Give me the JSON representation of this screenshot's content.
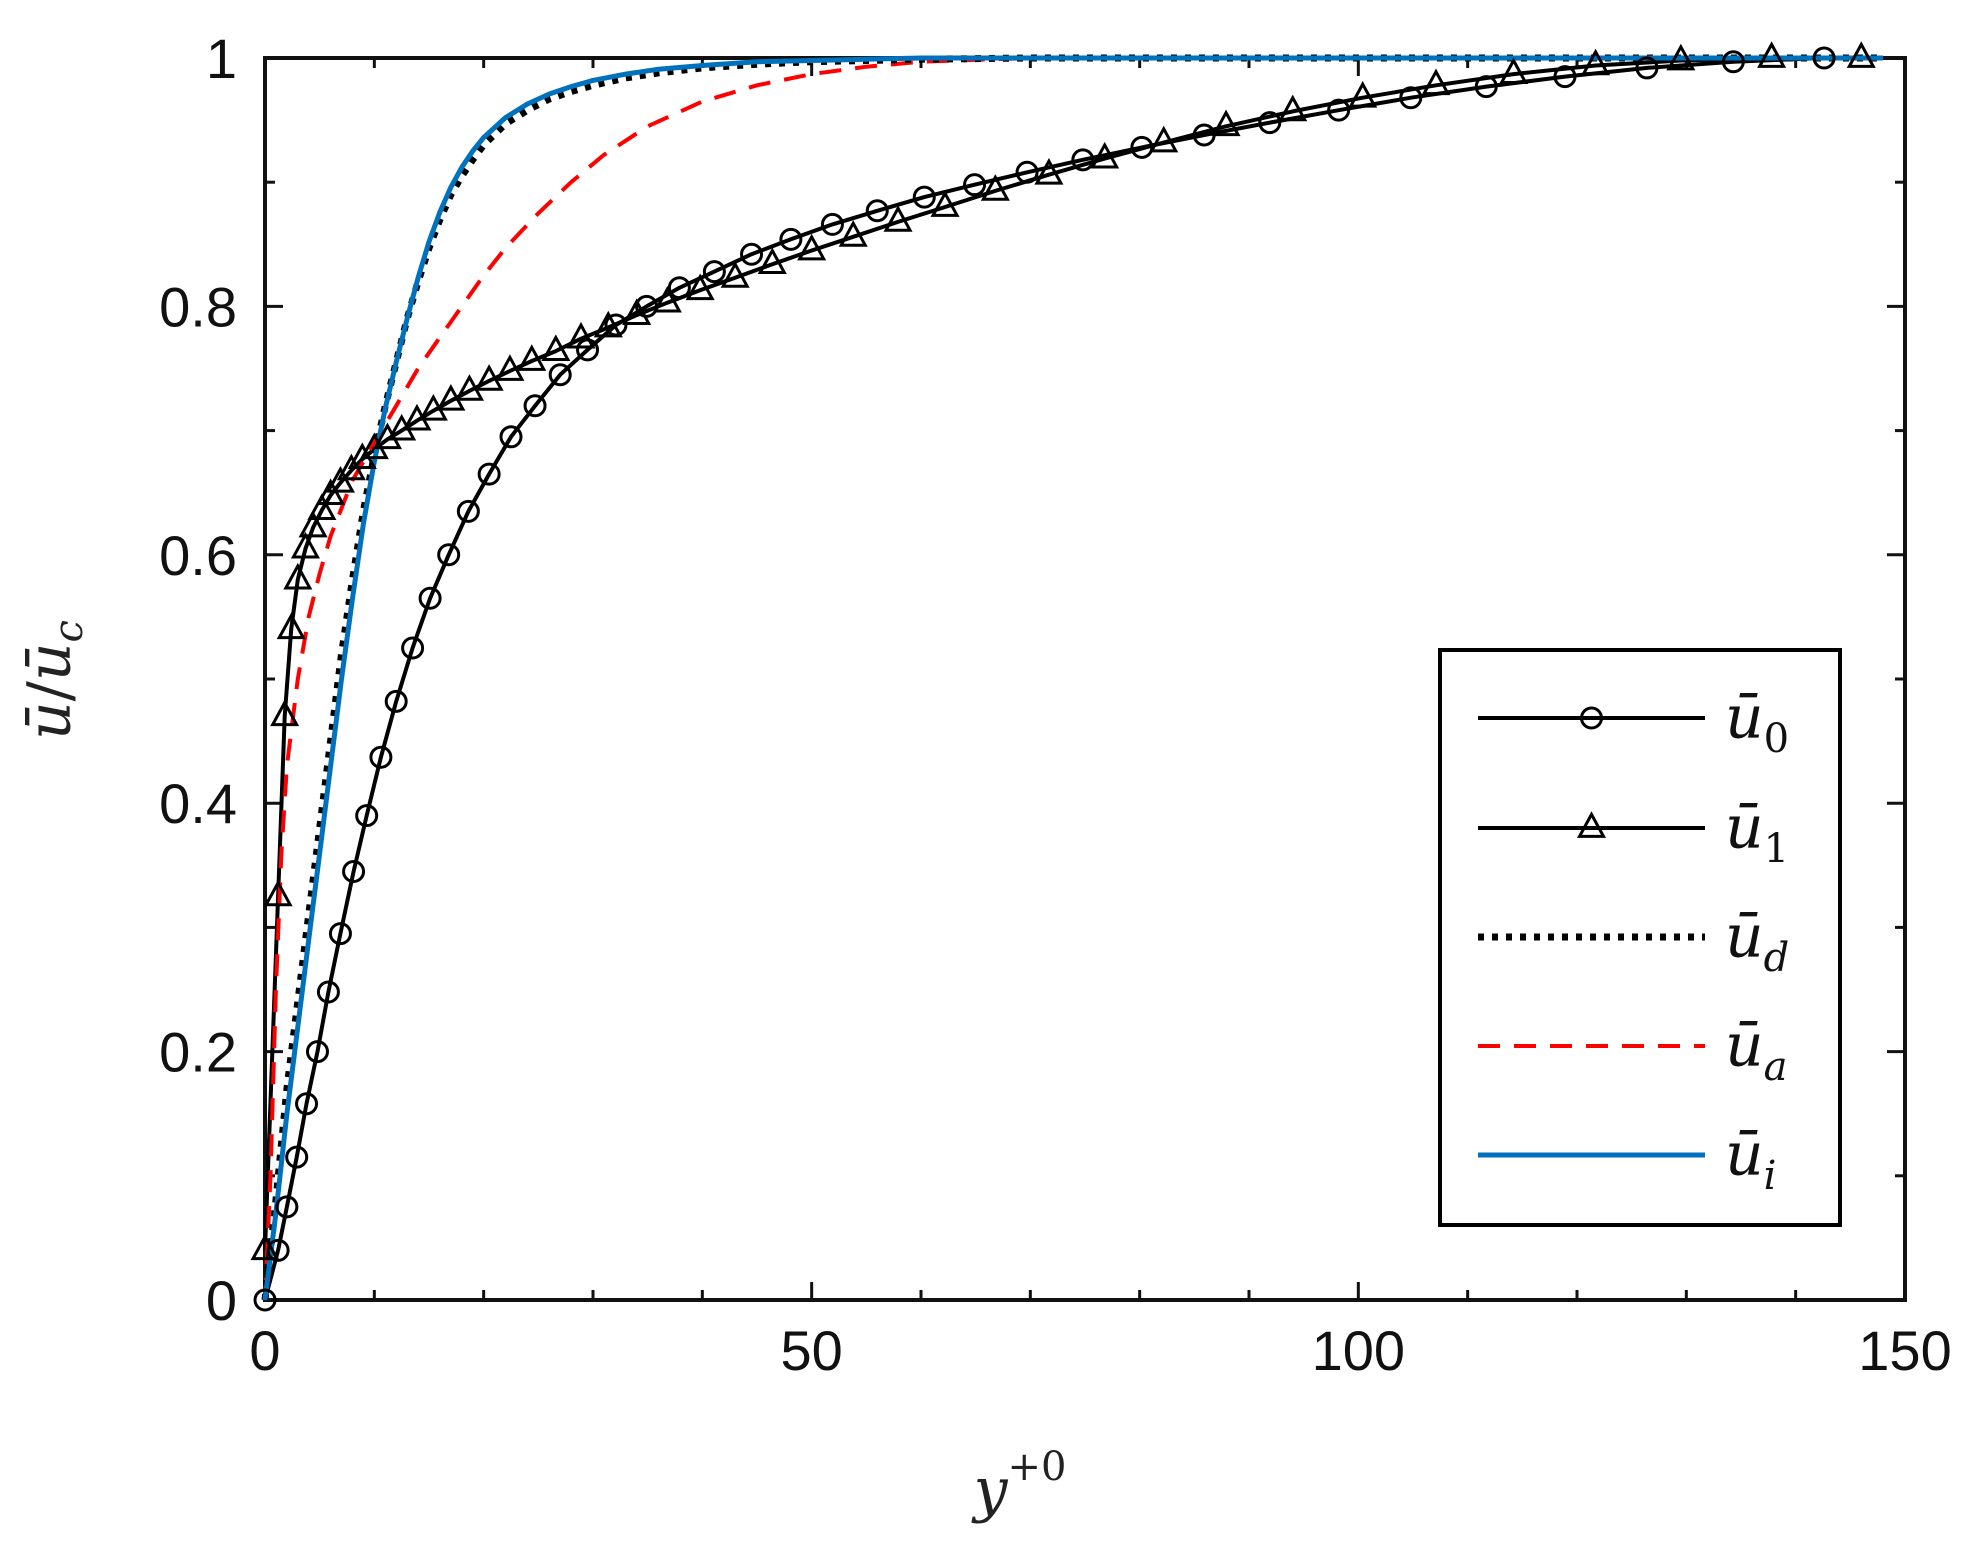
{
  "chart_data": {
    "type": "line",
    "xlabel": "y+0",
    "xlabel_main": "y",
    "xlabel_sup": "+0",
    "ylabel": "ū/ū_c",
    "ylabel_num": "ū",
    "ylabel_den": "ū",
    "ylabel_den_sub": "c",
    "xlim": [
      0,
      150
    ],
    "ylim": [
      0,
      1
    ],
    "xticks": [
      0,
      50,
      100,
      150
    ],
    "xtick_labels": [
      "0",
      "50",
      "100",
      "150"
    ],
    "yticks": [
      0,
      0.2,
      0.4,
      0.6,
      0.8,
      1
    ],
    "ytick_labels": [
      "0",
      "0.2",
      "0.4",
      "0.6",
      "0.8",
      "1"
    ],
    "grid": false,
    "legend_position": "bottom-right",
    "series": [
      {
        "name": "ū0",
        "label_main": "ū",
        "label_sub": "0",
        "color": "#000000",
        "style": "solid",
        "marker": "circle",
        "x": [
          0,
          1.2,
          2,
          2.9,
          3.8,
          4.8,
          5.8,
          6.9,
          8.1,
          9.3,
          10.6,
          12,
          13.5,
          15.1,
          16.8,
          18.6,
          20.5,
          22.5,
          24.7,
          27,
          29.5,
          32.1,
          34.9,
          37.9,
          41.1,
          44.5,
          48.1,
          51.9,
          56,
          60.3,
          64.9,
          69.7,
          74.8,
          80.2,
          85.9,
          91.9,
          98.2,
          104.8,
          111.7,
          118.9,
          126.4,
          134.3,
          142.6
        ],
        "y": [
          0,
          0.04,
          0.075,
          0.115,
          0.158,
          0.2,
          0.248,
          0.295,
          0.345,
          0.39,
          0.437,
          0.482,
          0.525,
          0.565,
          0.6,
          0.635,
          0.665,
          0.695,
          0.72,
          0.745,
          0.765,
          0.785,
          0.8,
          0.815,
          0.828,
          0.842,
          0.854,
          0.866,
          0.877,
          0.888,
          0.898,
          0.908,
          0.918,
          0.928,
          0.938,
          0.948,
          0.958,
          0.968,
          0.977,
          0.985,
          0.992,
          0.997,
          1.0
        ]
      },
      {
        "name": "ū1",
        "label_main": "ū",
        "label_sub": "1",
        "color": "#000000",
        "style": "solid",
        "marker": "triangle",
        "x": [
          0,
          1.2,
          1.8,
          2.4,
          3.0,
          3.7,
          4.4,
          5.2,
          6.0,
          6.9,
          7.9,
          8.9,
          10.0,
          11.2,
          12.5,
          13.9,
          15.4,
          17.0,
          18.7,
          20.5,
          22.4,
          24.4,
          26.6,
          28.9,
          31.4,
          34.0,
          36.8,
          39.8,
          43.0,
          46.4,
          50.0,
          53.8,
          57.9,
          62.2,
          66.8,
          71.7,
          76.8,
          82.2,
          87.9,
          94.0,
          100.4,
          107.1,
          114.2,
          121.7,
          129.5,
          137.8,
          146.0
        ],
        "y": [
          0.04,
          0.325,
          0.47,
          0.54,
          0.58,
          0.605,
          0.622,
          0.636,
          0.648,
          0.658,
          0.668,
          0.677,
          0.685,
          0.693,
          0.7,
          0.708,
          0.716,
          0.724,
          0.732,
          0.74,
          0.748,
          0.756,
          0.764,
          0.774,
          0.783,
          0.793,
          0.803,
          0.813,
          0.823,
          0.834,
          0.845,
          0.856,
          0.868,
          0.88,
          0.893,
          0.906,
          0.919,
          0.932,
          0.945,
          0.957,
          0.968,
          0.978,
          0.987,
          0.994,
          0.998,
          1.0,
          1.0
        ]
      },
      {
        "name": "ūd",
        "label_main": "ū",
        "label_sub": "d",
        "color": "#000000",
        "style": "dotted",
        "marker": "none",
        "x": [
          0,
          1,
          2,
          3,
          4,
          5,
          6,
          7,
          8,
          9,
          10,
          11,
          12,
          13,
          14,
          15,
          16,
          17,
          18,
          19,
          20,
          22,
          24,
          26,
          28,
          30,
          33,
          36,
          40,
          45,
          50,
          55,
          60,
          70,
          80,
          100,
          120,
          148
        ],
        "y": [
          0,
          0.08,
          0.17,
          0.24,
          0.31,
          0.38,
          0.45,
          0.52,
          0.58,
          0.635,
          0.68,
          0.72,
          0.755,
          0.79,
          0.82,
          0.847,
          0.87,
          0.89,
          0.905,
          0.918,
          0.93,
          0.947,
          0.958,
          0.967,
          0.973,
          0.978,
          0.984,
          0.988,
          0.992,
          0.995,
          0.997,
          0.998,
          0.999,
          1.0,
          1.0,
          1.0,
          1.0,
          1.0
        ]
      },
      {
        "name": "ūa",
        "label_main": "ū",
        "label_sub": "a",
        "color": "#ff0000",
        "style": "dashed",
        "marker": "none",
        "x": [
          0,
          0.5,
          1,
          1.5,
          2,
          3,
          4,
          5,
          6,
          8,
          10,
          12,
          14,
          16,
          18,
          20,
          22,
          25,
          28,
          31,
          35,
          40,
          45,
          50,
          55,
          60,
          70,
          80,
          100,
          120,
          148
        ],
        "y": [
          0,
          0.1,
          0.25,
          0.36,
          0.43,
          0.5,
          0.55,
          0.585,
          0.615,
          0.66,
          0.69,
          0.72,
          0.75,
          0.775,
          0.8,
          0.825,
          0.847,
          0.875,
          0.9,
          0.922,
          0.945,
          0.965,
          0.978,
          0.987,
          0.993,
          0.997,
          1.0,
          1.0,
          1.0,
          1.0,
          1.0
        ]
      },
      {
        "name": "ūi",
        "label_main": "ū",
        "label_sub": "i",
        "color": "#0072bd",
        "style": "solid",
        "marker": "none",
        "x": [
          0,
          1,
          2,
          3,
          4,
          5,
          6,
          7,
          8,
          9,
          10,
          11,
          12,
          13,
          14,
          15,
          16,
          17,
          18,
          19,
          20,
          22,
          24,
          26,
          28,
          30,
          33,
          36,
          40,
          45,
          50,
          55,
          60,
          70,
          80,
          100,
          120,
          148
        ],
        "y": [
          0,
          0.07,
          0.15,
          0.22,
          0.29,
          0.36,
          0.43,
          0.5,
          0.565,
          0.625,
          0.675,
          0.718,
          0.755,
          0.79,
          0.823,
          0.852,
          0.876,
          0.896,
          0.912,
          0.925,
          0.936,
          0.952,
          0.963,
          0.971,
          0.977,
          0.982,
          0.987,
          0.991,
          0.994,
          0.997,
          0.998,
          0.999,
          1.0,
          1.0,
          1.0,
          1.0,
          1.0,
          1.0
        ]
      }
    ]
  }
}
